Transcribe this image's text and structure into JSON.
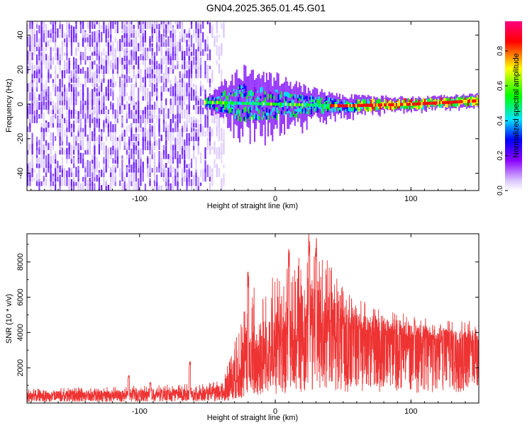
{
  "title": "GN04.2025.365.01.45.G01",
  "colors": {
    "snr_line": "#ee3333",
    "noise": "#6a1aff",
    "noise_light": "#d9c4ff"
  },
  "chart_data": [
    {
      "type": "heatmap",
      "title": "GN04.2025.365.01.45.G01",
      "xlabel": "Height of straight line (km)",
      "ylabel": "Frequency (Hz)",
      "xlim": [
        -183,
        150
      ],
      "ylim": [
        -50,
        48
      ],
      "x_ticks": [
        -100,
        0,
        100
      ],
      "y_ticks": [
        -40,
        -20,
        0,
        20,
        40
      ],
      "colorbar": {
        "label": "Normalized spectral amplitude",
        "range": [
          0,
          0.97
        ],
        "ticks": [
          0.0,
          0.2,
          0.4,
          0.6,
          0.8
        ],
        "colormap": [
          "#ffffff",
          "#d9c4ff",
          "#8a00ff",
          "#0000ff",
          "#00e5ff",
          "#00ff00",
          "#ffff00",
          "#ff0000",
          "#ff0080"
        ]
      },
      "description_features": {
        "noise_region_x": [
          -183,
          -45
        ],
        "signal_region_x": [
          -50,
          150
        ],
        "signal_center_freq": [
          [
            -50,
            1
          ],
          [
            0,
            0
          ],
          [
            50,
            -1
          ],
          [
            100,
            0
          ],
          [
            150,
            2
          ]
        ],
        "signal_spread_hz": [
          [
            -50,
            2
          ],
          [
            -25,
            10
          ],
          [
            0,
            8
          ],
          [
            25,
            5
          ],
          [
            50,
            3
          ],
          [
            100,
            2
          ],
          [
            150,
            2
          ]
        ]
      }
    },
    {
      "type": "line",
      "xlabel": "Height of straight line (km)",
      "ylabel": "SNR (10 * v/v)",
      "xlim": [
        -183,
        150
      ],
      "ylim": [
        0,
        9600
      ],
      "x_ticks": [
        -100,
        0,
        100
      ],
      "y_ticks": [
        2000,
        4000,
        6000,
        8000
      ],
      "series": [
        {
          "envelope_x": [
            -183,
            -150,
            -120,
            -90,
            -70,
            -50,
            -40,
            -35,
            -30,
            -25,
            -20,
            -15,
            -10,
            -5,
            0,
            5,
            10,
            15,
            20,
            25,
            30,
            35,
            40,
            45,
            50,
            60,
            70,
            80,
            90,
            100,
            110,
            120,
            130,
            140,
            150
          ],
          "envelope_mean": [
            400,
            420,
            450,
            480,
            500,
            520,
            600,
            800,
            1200,
            1600,
            2000,
            2300,
            2500,
            2700,
            3000,
            3300,
            3500,
            3800,
            4200,
            4500,
            4600,
            4700,
            4700,
            4500,
            4300,
            4100,
            4000,
            3900,
            3800,
            3700,
            3700,
            3600,
            3600,
            3500,
            3500
          ],
          "envelope_max": [
            800,
            900,
            950,
            1000,
            1100,
            1100,
            1400,
            2400,
            4000,
            5200,
            6200,
            6800,
            7000,
            7200,
            7400,
            7600,
            7800,
            8200,
            9000,
            9600,
            9000,
            8400,
            8000,
            7200,
            6600,
            6000,
            5600,
            5400,
            5200,
            5000,
            5000,
            4800,
            4800,
            4700,
            4600
          ],
          "spikes": [
            [
              -108,
              1600
            ],
            [
              -92,
              1200
            ],
            [
              -63,
              2400
            ],
            [
              -20,
              7600
            ],
            [
              10,
              9000
            ],
            [
              25,
              9600
            ],
            [
              30,
              9400
            ]
          ]
        }
      ]
    }
  ]
}
